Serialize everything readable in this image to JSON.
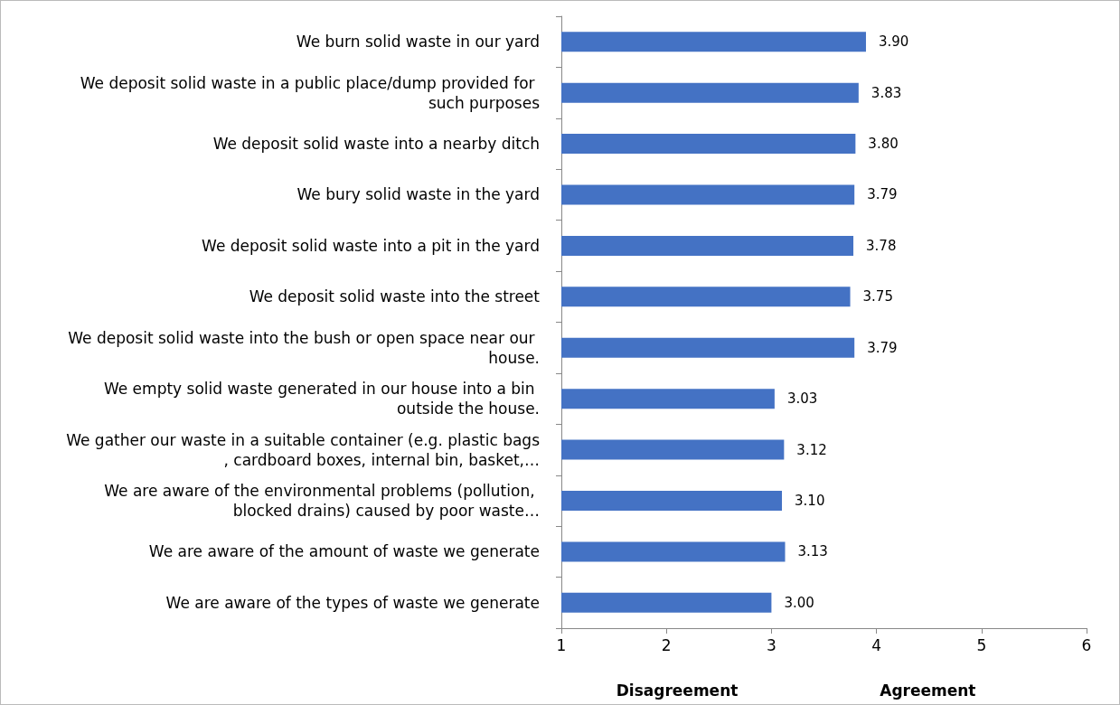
{
  "chart_data": {
    "type": "bar",
    "orientation": "horizontal",
    "categories": [
      "We burn solid waste in our yard",
      "We deposit solid waste in a public place/dump provided for such purposes",
      "We deposit solid waste into a nearby ditch",
      "We bury solid waste in the yard",
      "We deposit solid waste into a pit in the yard",
      "We deposit solid waste into the street",
      "We deposit solid waste into the bush or open space near our house.",
      "We empty solid waste generated in our house into a bin outside the house.",
      "We gather our waste in a suitable container (e.g. plastic bags, cardboard boxes, internal bin, basket,…",
      "We are aware of the environmental problems (pollution, blocked drains) caused by poor waste…",
      "We are aware of the amount of waste we generate",
      "We are aware of the types of waste we generate"
    ],
    "values": [
      3.9,
      3.83,
      3.8,
      3.79,
      3.78,
      3.75,
      3.79,
      3.03,
      3.12,
      3.1,
      3.13,
      3.0
    ],
    "value_labels": [
      "3.90",
      "3.83",
      "3.80",
      "3.79",
      "3.78",
      "3.75",
      "3.79",
      "3.03",
      "3.12",
      "3.10",
      "3.13",
      "3.00"
    ],
    "color": "#4472c4",
    "xlim": [
      1,
      6
    ],
    "xticks": [
      1,
      2,
      3,
      4,
      5,
      6
    ],
    "grid": false,
    "annotations": [
      "Disagreement",
      "Agreement"
    ]
  }
}
